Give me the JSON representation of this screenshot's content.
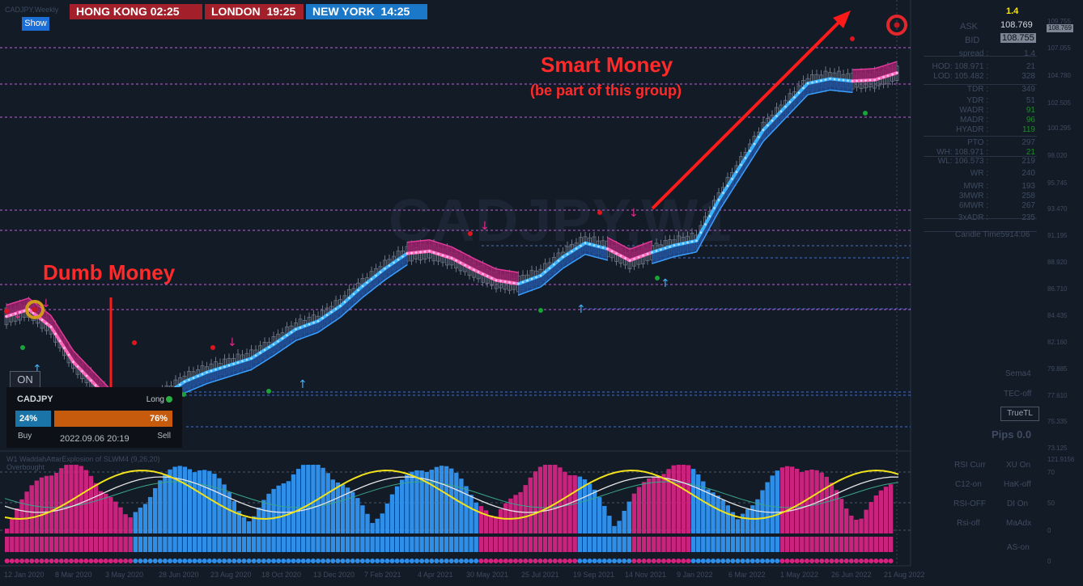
{
  "symbol_tiny": "CADJPY,Weekly",
  "sessions": [
    {
      "city": "HONG KONG",
      "time": "02:25"
    },
    {
      "city": "LONDON",
      "time": "19:25"
    },
    {
      "city": "NEW YORK",
      "time": "14:25"
    }
  ],
  "show_button": "Show",
  "annotations": {
    "smart_money": "Smart Money",
    "smart_money_sub": "(be part of this group)",
    "dumb_money": "Dumb Money"
  },
  "on_button": "ON",
  "sentiment": {
    "symbol": "CADJPY",
    "direction": "Long",
    "buy_pct": "24%",
    "sell_pct": "76%",
    "buy_value": 24,
    "sell_value": 76,
    "buy_label": "Buy",
    "sell_label": "Sell",
    "datetime": "2022.09.06 20:19"
  },
  "stats_panel": {
    "spike": "1.4",
    "ask_label": "ASK",
    "ask": "108.769",
    "bid_label": "BID",
    "bid": "108.755",
    "rows": [
      {
        "label": "spread :",
        "value": "1.4",
        "color": "#3e4b60"
      },
      {
        "label": "HOD: 108.971 :",
        "value": "21",
        "color": "#3e4b60"
      },
      {
        "label": "LOD: 105.482 :",
        "value": "328",
        "color": "#3e4b60"
      },
      {
        "label": "TDR :",
        "value": "349",
        "color": "#3e4b60"
      },
      {
        "label": "YDR :",
        "value": "51",
        "color": "#3e4b60"
      },
      {
        "label": "WADR :",
        "value": "91",
        "color": "#1f8a2a"
      },
      {
        "label": "MADR :",
        "value": "96",
        "color": "#1f8a2a"
      },
      {
        "label": "HYADR :",
        "value": "119",
        "color": "#1f8a2a"
      },
      {
        "label": "PTO :",
        "value": "297",
        "color": "#3e4b60"
      },
      {
        "label": "WH: 108.971 :",
        "value": "21",
        "color": "#1f8a2a"
      },
      {
        "label": "WL: 106.573 :",
        "value": "219",
        "color": "#3e4b60"
      },
      {
        "label": "WR :",
        "value": "240",
        "color": "#3e4b60"
      },
      {
        "label": "MWR :",
        "value": "193",
        "color": "#3e4b60"
      },
      {
        "label": "3MWR :",
        "value": "258",
        "color": "#3e4b60"
      },
      {
        "label": "6MWR :",
        "value": "267",
        "color": "#3e4b60"
      },
      {
        "label": "3xADR :",
        "value": "235",
        "color": "#3e4b60"
      }
    ],
    "candle_time": "Candle Time5914:06",
    "sema": "Sema4",
    "tec": "TEC-off",
    "truetl": "TrueTL",
    "pips": "Pips 0.0",
    "price_tag": "108.769"
  },
  "indicator": {
    "name": "W1 WaddahAttarExplosion of SLWM4 (9,26,20)",
    "overbought": "Overbought",
    "labels_left": [
      "RSI Curr",
      "C12-on",
      "RSI-OFF",
      "Rsi-off",
      "AS-on"
    ],
    "labels_right": [
      "XU On",
      "HaK-off",
      "DI On",
      "MaAdx"
    ]
  },
  "price_axis": [
    "109.755",
    "107.055",
    "104.780",
    "102.505",
    "100.295",
    "98.020",
    "95.745",
    "93.470",
    "91.195",
    "88.920",
    "86.710",
    "84.435",
    "82.160",
    "79.885",
    "77.610",
    "75.335",
    "73.125"
  ],
  "ind_axis": [
    "121.9156",
    "70",
    "50",
    "0",
    "0"
  ],
  "time_axis": [
    "12 Jan 2020",
    "8 Mar 2020",
    "3 May 2020",
    "28 Jun 2020",
    "23 Aug 2020",
    "18 Oct 2020",
    "13 Dec 2020",
    "7 Feb 2021",
    "4 Apr 2021",
    "30 May 2021",
    "25 Jul 2021",
    "19 Sep 2021",
    "14 Nov 2021",
    "9 Jan 2022",
    "6 Mar 2022",
    "1 May 2022",
    "26 Jun 2022",
    "21 Aug 2022"
  ],
  "watermark": "CADJPY,W1",
  "chart_data": {
    "type": "line",
    "title": "",
    "xlabel": "",
    "ylabel": "",
    "ylim": [
      73.125,
      109.755
    ],
    "series": [
      {
        "values": [
          84.4,
          85.0,
          83.5,
          80.5,
          78.5,
          76.5,
          75.6,
          77.5,
          78.8,
          79.6,
          80.2,
          80.8,
          82.0,
          83.3,
          84.0,
          85.3,
          87.0,
          88.5,
          89.8,
          90.0,
          89.4,
          88.4,
          87.5,
          87.2,
          87.9,
          89.5,
          90.7,
          90.2,
          89.2,
          89.9,
          90.5,
          90.9,
          94.4,
          97.4,
          100.4,
          102.4,
          104.4,
          104.8,
          104.6,
          104.7,
          105.3
        ]
      }
    ]
  }
}
